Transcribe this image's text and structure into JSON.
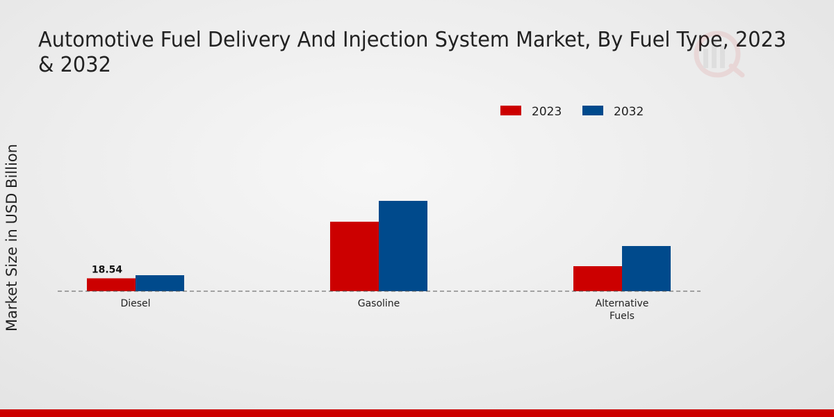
{
  "chart_data": {
    "type": "bar",
    "title": "Automotive Fuel Delivery And Injection System Market, By Fuel Type, 2023 & 2032",
    "xlabel": "",
    "ylabel": "Market Size in USD Billion",
    "categories": [
      "Diesel",
      "Gasoline",
      "Alternative Fuels"
    ],
    "series": [
      {
        "name": "2023",
        "color": "#cc0000",
        "values": [
          18.54,
          100.0,
          36.0
        ]
      },
      {
        "name": "2032",
        "color": "#004a8c",
        "values": [
          23.0,
          130.0,
          65.0
        ]
      }
    ],
    "data_labels": [
      {
        "series": 0,
        "category": 0,
        "text": "18.54"
      }
    ],
    "ylim": [
      0,
      190
    ],
    "grid": false,
    "legend": "top-center"
  },
  "colors": {
    "bottom_bar": "#cc0000",
    "baseline": "#555555"
  }
}
